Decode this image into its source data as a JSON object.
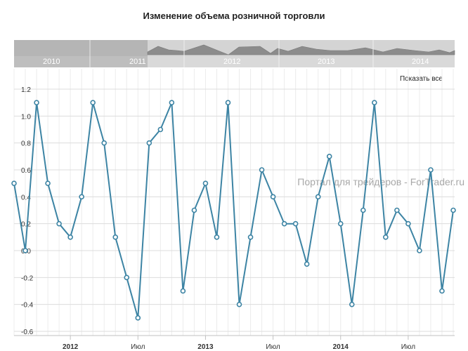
{
  "chart_data": {
    "type": "line",
    "title": "Изменение объема розничной торговли",
    "series": [
      {
        "color": "#3d84a4",
        "values": [
          0.5,
          0.0,
          1.1,
          0.5,
          0.2,
          0.1,
          0.4,
          1.1,
          0.8,
          0.1,
          -0.2,
          -0.5,
          0.8,
          0.9,
          1.1,
          -0.3,
          0.3,
          0.5,
          0.1,
          1.1,
          -0.4,
          0.1,
          0.6,
          0.4,
          0.2,
          0.2,
          -0.1,
          0.4,
          0.7,
          0.2,
          -0.4,
          0.3,
          1.1,
          0.1,
          0.3,
          0.2,
          0.0,
          0.6,
          -0.3,
          0.3
        ]
      }
    ],
    "yticks": [
      "1.2",
      "1.0",
      "0.8",
      "0.6",
      "0.4",
      "0.2",
      "0.0",
      "-0.2",
      "-0.4",
      "-0.6"
    ],
    "ylim": [
      -0.6,
      1.2
    ],
    "xticks": [
      {
        "label": "2012",
        "bold": true
      },
      {
        "label": "Июл",
        "bold": false
      },
      {
        "label": "2013",
        "bold": true
      },
      {
        "label": "Июл",
        "bold": false
      },
      {
        "label": "2014",
        "bold": true
      },
      {
        "label": "Июл",
        "bold": false
      }
    ],
    "grid": true,
    "navigator_labels": [
      "2010",
      "2011",
      "2012",
      "2013",
      "2014"
    ]
  },
  "controls": {
    "show_all": "Показать все"
  },
  "watermark": "Портал для трейдеров - ForTrader.ru"
}
